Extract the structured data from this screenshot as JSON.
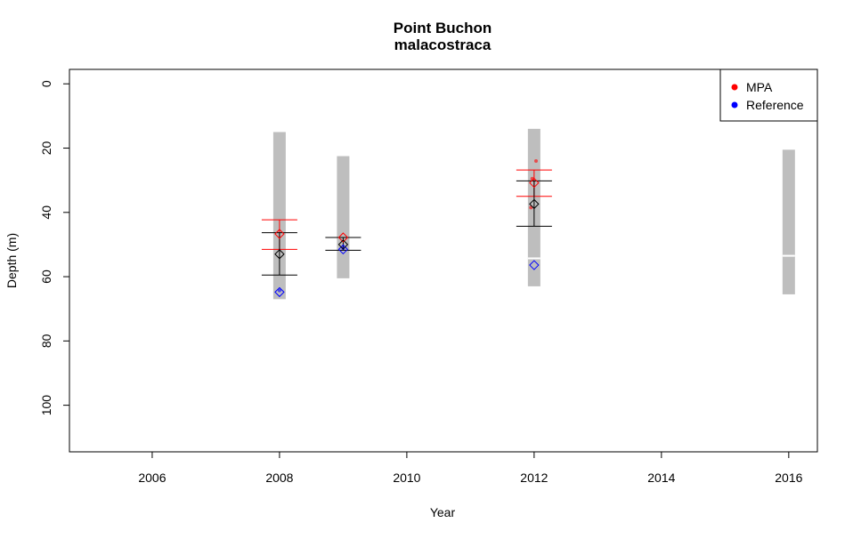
{
  "chart_data": {
    "type": "scatter",
    "title": "Point Buchon",
    "subtitle": "malacostraca",
    "xlabel": "Year",
    "ylabel": "Depth (m)",
    "xlim": [
      2004.7,
      2016.45
    ],
    "ylim": [
      114.5,
      -4.5
    ],
    "y_reversed": true,
    "x_ticks": [
      "2006",
      "2008",
      "2010",
      "2012",
      "2014",
      "2016"
    ],
    "y_ticks": [
      "0",
      "20",
      "40",
      "60",
      "80",
      "100"
    ],
    "legend": {
      "position": "top-right",
      "entries": [
        {
          "label": "MPA",
          "color": "#ff0000"
        },
        {
          "label": "Reference",
          "color": "#0000ff"
        }
      ]
    },
    "depth_ranges": [
      {
        "year": 2008,
        "top": 15,
        "bottom": 67,
        "gaps": []
      },
      {
        "year": 2009,
        "top": 22.5,
        "bottom": 60.5,
        "gaps": []
      },
      {
        "year": 2012,
        "top": 14,
        "bottom": 63,
        "gaps": [
          54.3
        ]
      },
      {
        "year": 2016,
        "top": 20.5,
        "bottom": 65.5,
        "gaps": [
          53.5
        ]
      }
    ],
    "mpa_means": [
      {
        "year": 2008,
        "mean": 46.7,
        "lower": 42.3,
        "upper": 51.5
      },
      {
        "year": 2009,
        "mean": 47.8,
        "lower": null,
        "upper": null
      },
      {
        "year": 2012,
        "mean": 30.8,
        "lower": 26.8,
        "upper": 35
      }
    ],
    "reference_means": [
      {
        "year": 2008,
        "mean": 64.8
      },
      {
        "year": 2009,
        "mean": 51.5
      },
      {
        "year": 2012,
        "mean": 56.4
      }
    ],
    "overall_means": [
      {
        "year": 2008,
        "mean": 53,
        "lower": 46.3,
        "upper": 59.5
      },
      {
        "year": 2009,
        "mean": 50,
        "lower": 47.8,
        "upper": 51.8
      },
      {
        "year": 2012,
        "mean": 37.4,
        "lower": 30.2,
        "upper": 44.3
      }
    ],
    "mpa_points": [
      {
        "year": 2011.95,
        "depth": 38.5
      },
      {
        "year": 2011.97,
        "depth": 29.5
      },
      {
        "year": 2012.03,
        "depth": 24
      }
    ],
    "reference_points": [
      {
        "year": 2008,
        "depth": 64.3
      },
      {
        "year": 2009,
        "depth": 51.2
      }
    ],
    "colors": {
      "range": "#bebebe",
      "mpa": "#ff0000",
      "reference": "#0000ff",
      "overall": "#000000"
    }
  }
}
